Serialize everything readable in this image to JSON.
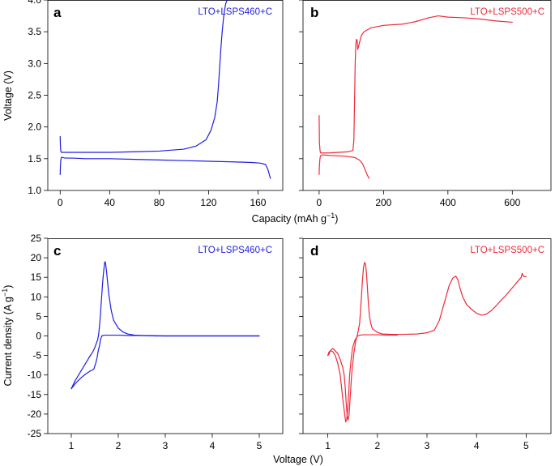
{
  "colors": {
    "blue": "#1f1fe0",
    "red": "#ee2a3a"
  },
  "labels": {
    "top_xlabel_main": "Capacity (mAh g",
    "top_xlabel_sup": "−1",
    "top_xlabel_end": ")",
    "bottom_xlabel": "Voltage (V)",
    "top_ylabel": "Voltage (V)",
    "bottom_ylabel_main": "Current density (A g",
    "bottom_ylabel_sup": "−1",
    "bottom_ylabel_end": ")"
  },
  "chart_data": [
    {
      "panel": "a",
      "type": "line",
      "legend": "LTO+LSPS460+C",
      "color": "#1f1fe0",
      "xlim": [
        -10,
        180
      ],
      "ylim": [
        1.0,
        4.0
      ],
      "xticks": [
        0,
        40,
        80,
        120,
        160
      ],
      "yticks": [
        1.0,
        1.5,
        2.0,
        2.5,
        3.0,
        3.5,
        4.0
      ],
      "ytick_labels": [
        "1.0",
        "1.5",
        "2.0",
        "2.5",
        "3.0",
        "3.5",
        "4.0"
      ],
      "xlabel": "Capacity (mAh g−1)",
      "ylabel": "Voltage (V)",
      "series": [
        {
          "x": [
            0,
            0.2,
            0.5,
            1,
            2,
            4,
            8,
            20,
            40,
            60,
            80,
            100,
            110,
            118,
            122,
            125,
            127,
            128,
            129,
            130,
            131,
            132,
            133,
            134,
            135,
            136
          ],
          "y": [
            1.85,
            1.7,
            1.62,
            1.6,
            1.6,
            1.6,
            1.6,
            1.6,
            1.6,
            1.61,
            1.62,
            1.65,
            1.7,
            1.8,
            1.95,
            2.15,
            2.4,
            2.65,
            2.95,
            3.25,
            3.5,
            3.7,
            3.85,
            3.95,
            4.0,
            4.02
          ]
        },
        {
          "x": [
            0,
            0.2,
            0.5,
            1,
            2,
            4,
            10,
            20,
            40,
            60,
            80,
            100,
            120,
            140,
            155,
            162,
            166,
            168,
            170
          ],
          "y": [
            1.25,
            1.38,
            1.48,
            1.52,
            1.52,
            1.51,
            1.51,
            1.5,
            1.5,
            1.49,
            1.48,
            1.47,
            1.46,
            1.45,
            1.44,
            1.43,
            1.41,
            1.33,
            1.19
          ]
        }
      ]
    },
    {
      "panel": "b",
      "type": "line",
      "legend": "LTO+LSPS500+C",
      "color": "#ee2a3a",
      "xlim": [
        -50,
        720
      ],
      "ylim": [
        1.0,
        4.0
      ],
      "xticks": [
        0,
        200,
        400,
        600
      ],
      "yticks": [
        1.0,
        1.5,
        2.0,
        2.5,
        3.0,
        3.5,
        4.0
      ],
      "series": [
        {
          "x": [
            0,
            1,
            3,
            5,
            10,
            30,
            60,
            90,
            105,
            108,
            110,
            112,
            114,
            116,
            118,
            120,
            124,
            128,
            132,
            140,
            160,
            200,
            260,
            300,
            340,
            370,
            400,
            450,
            500,
            550,
            600
          ],
          "y": [
            2.18,
            1.75,
            1.62,
            1.59,
            1.59,
            1.59,
            1.6,
            1.61,
            1.63,
            1.8,
            2.4,
            3.0,
            3.3,
            3.38,
            3.37,
            3.22,
            3.3,
            3.38,
            3.45,
            3.5,
            3.56,
            3.6,
            3.62,
            3.66,
            3.72,
            3.75,
            3.73,
            3.72,
            3.7,
            3.67,
            3.65
          ]
        },
        {
          "x": [
            0,
            1,
            3,
            5,
            10,
            40,
            80,
            110,
            125,
            135,
            140,
            145,
            150,
            155
          ],
          "y": [
            1.25,
            1.4,
            1.52,
            1.55,
            1.56,
            1.55,
            1.54,
            1.52,
            1.48,
            1.42,
            1.36,
            1.3,
            1.24,
            1.19
          ]
        }
      ]
    },
    {
      "panel": "c",
      "type": "line",
      "legend": "LTO+LSPS460+C",
      "color": "#1f1fe0",
      "xlim": [
        0.5,
        5.5
      ],
      "ylim": [
        -25,
        25
      ],
      "xticks": [
        1,
        2,
        3,
        4,
        5
      ],
      "yticks": [
        -25,
        -20,
        -15,
        -10,
        -5,
        0,
        5,
        10,
        15,
        20,
        25
      ],
      "xlabel": "Voltage (V)",
      "ylabel": "Current density (A g−1)",
      "series": [
        {
          "x": [
            1.0,
            1.08,
            1.18,
            1.28,
            1.38,
            1.46,
            1.5,
            1.53,
            1.56,
            1.58,
            1.6,
            1.62,
            1.64,
            1.66,
            1.68,
            1.7,
            1.71,
            1.72,
            1.73,
            1.75,
            1.77,
            1.8,
            1.85,
            1.9,
            2.0,
            2.1,
            2.2,
            2.35,
            2.5,
            2.8,
            3.5,
            4.5,
            5.0
          ],
          "y": [
            -13.5,
            -11.5,
            -9.5,
            -7.5,
            -5.5,
            -4.0,
            -3.0,
            -2.0,
            -1.0,
            0.2,
            2.5,
            5.5,
            9.0,
            12.5,
            15.5,
            17.8,
            18.8,
            19.0,
            18.5,
            16.5,
            14.0,
            10.5,
            6.5,
            4.0,
            2.0,
            1.0,
            0.5,
            0.2,
            0.1,
            0.0,
            0.0,
            0.0,
            0.0
          ]
        },
        {
          "x": [
            1.0,
            1.1,
            1.2,
            1.3,
            1.4,
            1.48,
            1.52,
            1.55,
            1.57,
            1.6,
            1.62,
            1.65,
            1.7,
            1.8,
            2.0,
            2.2,
            2.5,
            3.0,
            4.0,
            5.0
          ],
          "y": [
            -13.5,
            -12.0,
            -10.8,
            -9.8,
            -9.0,
            -8.5,
            -7.0,
            -5.5,
            -4.0,
            -2.5,
            -1.0,
            0.0,
            0.2,
            0.2,
            0.2,
            0.1,
            0.1,
            0.0,
            0.0,
            0.0
          ]
        }
      ]
    },
    {
      "panel": "d",
      "type": "line",
      "legend": "LTO+LSPS500+C",
      "color": "#ee2a3a",
      "xlim": [
        0.5,
        5.5
      ],
      "ylim": [
        -25,
        25
      ],
      "xticks": [
        1,
        2,
        3,
        4,
        5
      ],
      "yticks": [
        -25,
        -20,
        -15,
        -10,
        -5,
        0,
        5,
        10,
        15,
        20,
        25
      ],
      "series": [
        {
          "x": [
            1.0,
            1.02,
            1.05,
            1.1,
            1.15,
            1.2,
            1.25,
            1.3,
            1.33,
            1.35,
            1.37,
            1.39,
            1.41,
            1.43,
            1.45,
            1.48,
            1.52,
            1.56,
            1.6,
            1.64,
            1.66,
            1.68,
            1.7,
            1.72,
            1.74,
            1.76,
            1.78,
            1.8,
            1.82,
            1.84,
            1.87,
            1.9,
            2.0,
            2.1,
            2.3,
            2.5,
            2.8,
            3.0,
            3.15,
            3.25,
            3.35,
            3.45,
            3.52,
            3.58,
            3.62,
            3.66,
            3.72,
            3.8,
            3.9,
            4.0,
            4.1,
            4.2,
            4.3,
            4.4,
            4.5,
            4.6,
            4.7,
            4.8,
            4.9,
            4.92,
            4.95,
            5.0
          ],
          "y": [
            -5.0,
            -4.8,
            -3.8,
            -3.2,
            -3.8,
            -4.5,
            -6.0,
            -8.0,
            -10.0,
            -13.0,
            -17.0,
            -20.5,
            -21.5,
            -20.0,
            -16.0,
            -10.0,
            -5.0,
            -1.5,
            0.5,
            3.0,
            6.5,
            10.5,
            14.5,
            17.5,
            18.8,
            18.5,
            16.0,
            12.0,
            8.0,
            5.0,
            3.0,
            1.8,
            0.9,
            0.5,
            0.4,
            0.4,
            0.5,
            0.8,
            1.5,
            4.0,
            8.5,
            13.0,
            14.8,
            15.3,
            14.5,
            12.5,
            10.0,
            8.0,
            6.8,
            5.8,
            5.3,
            5.6,
            6.5,
            7.8,
            9.2,
            10.5,
            12.0,
            13.5,
            15.0,
            16.0,
            15.2,
            15.2
          ]
        },
        {
          "x": [
            1.0,
            1.02,
            1.05,
            1.1,
            1.15,
            1.2,
            1.25,
            1.28,
            1.31,
            1.34,
            1.36,
            1.38,
            1.4,
            1.42,
            1.44,
            1.47,
            1.5,
            1.55,
            1.6,
            1.65,
            1.7,
            1.8,
            1.9,
            2.0,
            2.2,
            2.4
          ],
          "y": [
            -5.0,
            -4.2,
            -3.8,
            -4.0,
            -5.0,
            -7.0,
            -10.0,
            -13.5,
            -17.0,
            -20.0,
            -22.0,
            -21.5,
            -19.0,
            -15.0,
            -10.0,
            -6.0,
            -3.0,
            -1.0,
            0.0,
            0.2,
            0.3,
            0.3,
            0.3,
            0.3,
            0.2,
            0.2
          ]
        }
      ]
    }
  ]
}
